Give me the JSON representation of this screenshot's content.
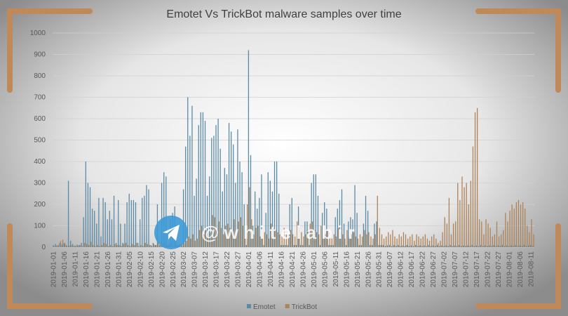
{
  "chart_data": {
    "type": "bar",
    "title": "Emotet Vs TrickBot malware samples over time",
    "watermark": "@ w h i t e l a b i r",
    "categories": [
      "2019-01-01",
      null,
      null,
      null,
      null,
      "2019-01-06",
      null,
      null,
      null,
      null,
      "2019-01-11",
      null,
      null,
      null,
      null,
      "2019-01-16",
      null,
      null,
      null,
      null,
      "2019-01-21",
      null,
      null,
      null,
      null,
      "2019-01-26",
      null,
      null,
      null,
      null,
      "2019-01-31",
      null,
      null,
      null,
      null,
      "2019-02-05",
      null,
      null,
      null,
      null,
      "2019-02-10",
      null,
      null,
      null,
      null,
      "2019-02-15",
      null,
      null,
      null,
      null,
      "2019-02-20",
      null,
      null,
      null,
      null,
      "2019-02-25",
      null,
      null,
      null,
      null,
      "2019-03-02",
      null,
      null,
      null,
      null,
      "2019-03-07",
      null,
      null,
      null,
      null,
      "2019-03-12",
      null,
      null,
      null,
      null,
      "2019-03-17",
      null,
      null,
      null,
      null,
      "2019-03-22",
      null,
      null,
      null,
      null,
      "2019-03-27",
      null,
      null,
      null,
      null,
      "2019-04-01",
      null,
      null,
      null,
      null,
      "2019-04-06",
      null,
      null,
      null,
      null,
      "2019-04-11",
      null,
      null,
      null,
      null,
      "2019-04-16",
      null,
      null,
      null,
      null,
      "2019-04-21",
      null,
      null,
      null,
      null,
      "2019-04-26",
      null,
      null,
      null,
      null,
      "2019-05-01",
      null,
      null,
      null,
      null,
      "2019-05-06",
      null,
      null,
      null,
      null,
      "2019-05-11",
      null,
      null,
      null,
      null,
      "2019-05-16",
      null,
      null,
      null,
      null,
      "2019-05-21",
      null,
      null,
      null,
      null,
      "2019-05-26",
      null,
      null,
      null,
      null,
      "2019-05-31",
      null,
      null,
      null,
      null,
      "2019-06-07",
      null,
      null,
      null,
      null,
      "2019-06-12",
      null,
      null,
      null,
      null,
      "2019-06-17",
      null,
      null,
      null,
      null,
      "2019-06-22",
      null,
      null,
      null,
      null,
      "2019-06-27",
      null,
      null,
      null,
      null,
      "2019-07-02",
      null,
      null,
      null,
      null,
      "2019-07-07",
      null,
      null,
      null,
      null,
      "2019-07-12",
      null,
      null,
      null,
      null,
      "2019-07-17",
      null,
      null,
      null,
      null,
      "2019-07-22",
      null,
      null,
      null,
      null,
      "2019-07-27",
      null,
      null,
      null,
      null,
      "2019-08-01",
      null,
      null,
      null,
      null,
      "2019-08-06",
      null,
      null,
      null,
      null,
      "2019-08-11",
      null
    ],
    "series": [
      {
        "name": "Emotet",
        "color": "#5b8aa6",
        "values": [
          10,
          15,
          8,
          20,
          12,
          18,
          10,
          310,
          30,
          15,
          8,
          12,
          10,
          20,
          140,
          400,
          300,
          280,
          180,
          170,
          110,
          230,
          50,
          230,
          210,
          130,
          170,
          130,
          240,
          20,
          220,
          110,
          20,
          110,
          210,
          250,
          220,
          220,
          210,
          20,
          130,
          230,
          240,
          290,
          270,
          10,
          20,
          10,
          200,
          10,
          300,
          350,
          330,
          10,
          130,
          160,
          190,
          10,
          10,
          15,
          270,
          470,
          700,
          520,
          660,
          240,
          320,
          570,
          630,
          630,
          590,
          240,
          330,
          510,
          520,
          570,
          600,
          460,
          260,
          370,
          340,
          580,
          540,
          480,
          300,
          550,
          400,
          350,
          200,
          10,
          920,
          430,
          100,
          260,
          180,
          230,
          340,
          10,
          160,
          350,
          310,
          260,
          400,
          400,
          250,
          10,
          10,
          10,
          10,
          200,
          230,
          10,
          10,
          190,
          10,
          10,
          120,
          120,
          10,
          300,
          340,
          340,
          240,
          10,
          160,
          210,
          180,
          10,
          10,
          10,
          140,
          180,
          220,
          270,
          110,
          10,
          120,
          140,
          130,
          290,
          160,
          10,
          10,
          110,
          240,
          170,
          10,
          10,
          110,
          120,
          10,
          10,
          10,
          5,
          8,
          10,
          5,
          10,
          5,
          10,
          5,
          8,
          5,
          10,
          5,
          8,
          5,
          10,
          5,
          8,
          5,
          8,
          5,
          10,
          5,
          8,
          5,
          10,
          5,
          8,
          5,
          8,
          5,
          10,
          5,
          8,
          5,
          10,
          5,
          8,
          5,
          8,
          5,
          10,
          5,
          8,
          5,
          10,
          5,
          8,
          5,
          8,
          5,
          10,
          5,
          8,
          5,
          10,
          5,
          8,
          5,
          8,
          5,
          10,
          5,
          8,
          5,
          10,
          5,
          8,
          10,
          5
        ]
      },
      {
        "name": "TrickBot",
        "color": "#ad8358",
        "values": [
          5,
          8,
          10,
          30,
          35,
          20,
          5,
          8,
          10,
          5,
          5,
          8,
          10,
          5,
          20,
          15,
          10,
          25,
          10,
          5,
          10,
          5,
          10,
          20,
          15,
          5,
          10,
          5,
          15,
          10,
          10,
          5,
          15,
          20,
          10,
          5,
          15,
          10,
          20,
          5,
          10,
          5,
          20,
          15,
          10,
          5,
          15,
          10,
          25,
          10,
          15,
          20,
          10,
          15,
          20,
          5,
          25,
          10,
          15,
          10,
          20,
          30,
          50,
          40,
          60,
          30,
          40,
          80,
          100,
          60,
          80,
          50,
          70,
          150,
          140,
          80,
          120,
          90,
          60,
          100,
          110,
          90,
          70,
          130,
          60,
          120,
          140,
          100,
          80,
          200,
          280,
          130,
          60,
          90,
          100,
          50,
          80,
          70,
          60,
          40,
          110,
          90,
          80,
          70,
          60,
          50,
          90,
          60,
          50,
          80,
          60,
          50,
          120,
          90,
          70,
          50,
          60,
          80,
          110,
          120,
          80,
          70,
          60,
          100,
          50,
          60,
          80,
          70,
          40,
          60,
          50,
          90,
          70,
          60,
          40,
          80,
          50,
          60,
          70,
          50,
          40,
          60,
          50,
          80,
          60,
          70,
          50,
          40,
          60,
          240,
          90,
          60,
          40,
          50,
          70,
          60,
          80,
          50,
          40,
          60,
          50,
          70,
          60,
          40,
          50,
          60,
          30,
          60,
          50,
          40,
          50,
          60,
          40,
          30,
          50,
          60,
          40,
          20,
          30,
          70,
          140,
          110,
          230,
          60,
          110,
          120,
          300,
          220,
          330,
          280,
          300,
          200,
          310,
          470,
          630,
          650,
          130,
          120,
          60,
          130,
          110,
          90,
          50,
          60,
          120,
          50,
          60,
          80,
          160,
          120,
          170,
          200,
          180,
          210,
          220,
          200,
          210,
          180,
          100,
          70,
          130,
          60
        ]
      }
    ],
    "ylim": [
      0,
      1000
    ],
    "yticks": [
      0,
      100,
      200,
      300,
      400,
      500,
      600,
      700,
      800,
      900,
      1000
    ],
    "grid": true
  }
}
